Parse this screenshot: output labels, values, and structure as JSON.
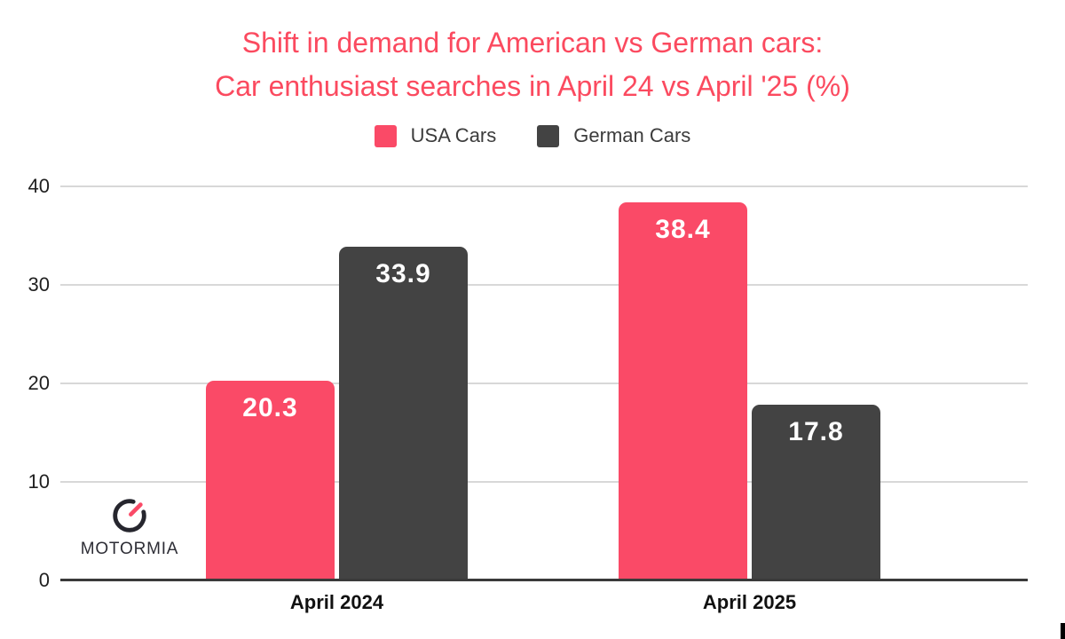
{
  "title": {
    "line1": "Shift in demand for American vs German cars:",
    "line2": "Car enthusiast searches in April 24 vs April '25 (%)"
  },
  "legend": [
    {
      "label": "USA Cars",
      "color": "#fa4a67"
    },
    {
      "label": "German Cars",
      "color": "#434343"
    }
  ],
  "logo": {
    "text": "MOTORMIA"
  },
  "colors": {
    "accent": "#fb4a5f",
    "bar_usa": "#fa4a67",
    "bar_german": "#434343",
    "grid": "#d8d8d8",
    "axis": "#3a3a3a",
    "label_text": "#ffffff"
  },
  "chart_data": {
    "type": "bar",
    "title": "Shift in demand for American vs German cars: Car enthusiast searches in April 24 vs April '25 (%)",
    "categories": [
      "April 2024",
      "April 2025"
    ],
    "series": [
      {
        "name": "USA Cars",
        "color": "#fa4a67",
        "values": [
          20.3,
          38.4
        ]
      },
      {
        "name": "German Cars",
        "color": "#434343",
        "values": [
          33.9,
          17.8
        ]
      }
    ],
    "xlabel": "",
    "ylabel": "",
    "ylim": [
      0,
      40
    ],
    "yticks": [
      0,
      10,
      20,
      30,
      40
    ],
    "grid": true,
    "legend_position": "top",
    "bar_labels": true,
    "bar_label_format": "one_decimal"
  }
}
